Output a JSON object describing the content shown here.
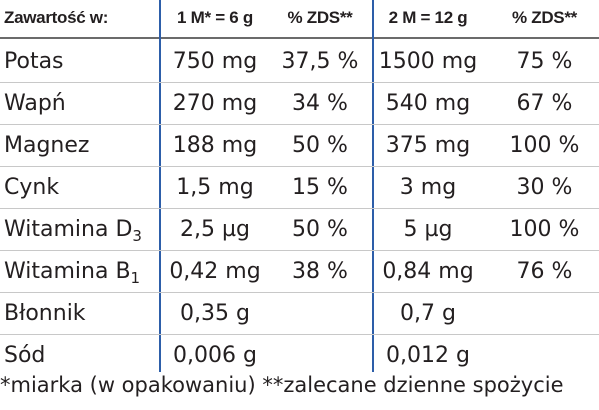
{
  "table": {
    "header": [
      "Zawartość w:",
      "1 M* = 6 g",
      "% ZDS**",
      "2 M = 12 g",
      "% ZDS**"
    ],
    "rows": [
      [
        {
          "text": "Potas"
        },
        "750 mg",
        "37,5 %",
        "1500 mg",
        "75 %"
      ],
      [
        {
          "text": "Wapń"
        },
        "270 mg",
        "34 %",
        "540 mg",
        "67 %"
      ],
      [
        {
          "text": "Magnez"
        },
        "188 mg",
        "50 %",
        "375 mg",
        "100 %"
      ],
      [
        {
          "text": "Cynk"
        },
        "1,5 mg",
        "15 %",
        "3 mg",
        "30 %"
      ],
      [
        {
          "text": "Witamina D",
          "sub": "3"
        },
        "2,5 µg",
        "50 %",
        "5 µg",
        "100 %"
      ],
      [
        {
          "text": "Witamina B",
          "sub": "1"
        },
        "0,42 mg",
        "38 %",
        "0,84 mg",
        "76 %"
      ],
      [
        {
          "text": "Błonnik"
        },
        "0,35 g",
        null,
        "0,7 g",
        null
      ],
      [
        {
          "text": "Sód"
        },
        "0,006 g",
        null,
        "0,012 g",
        null
      ]
    ],
    "footnote": "*miarka (w opakowaniu) **zalecane dzienne spożycie"
  }
}
